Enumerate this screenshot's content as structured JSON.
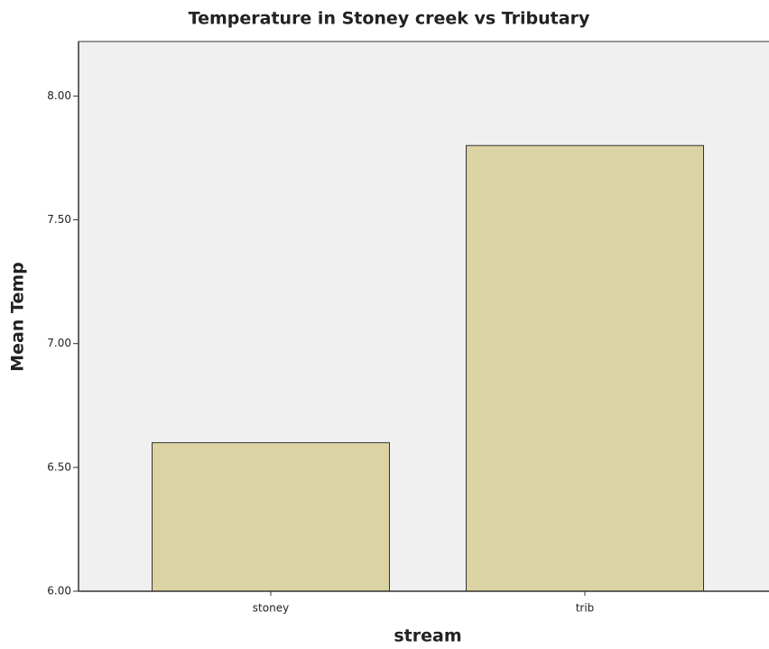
{
  "chart_data": {
    "type": "bar",
    "title": "Temperature in Stoney creek vs Tributary",
    "x_label": "stream",
    "y_label": "Mean Temp",
    "categories": [
      "stoney",
      "trib"
    ],
    "values": [
      6.6,
      7.8
    ],
    "color": "#dbd3a3",
    "ylim": [
      6,
      8.22
    ],
    "yticks": [
      {
        "value": 6,
        "label": "6.00"
      },
      {
        "value": 6.5,
        "label": "6.50"
      },
      {
        "value": 7,
        "label": "7.00"
      },
      {
        "value": 7.5,
        "label": "7.50"
      },
      {
        "value": 8,
        "label": "8.00"
      }
    ],
    "grid": false
  }
}
